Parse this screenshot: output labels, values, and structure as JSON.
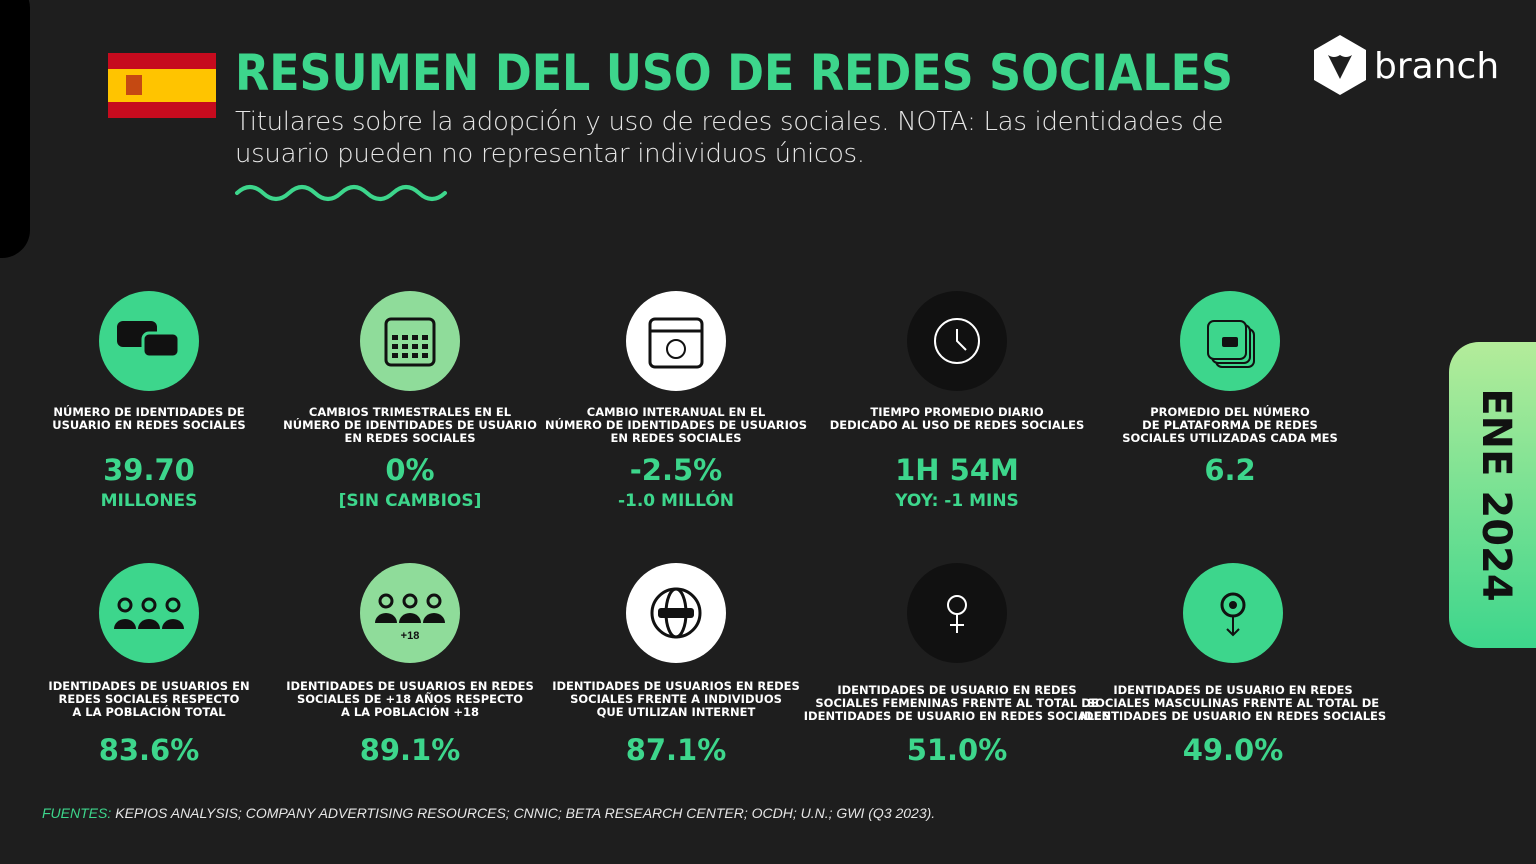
{
  "header": {
    "title": "RESUMEN DEL USO DE REDES SOCIALES",
    "subtitle": "Titulares sobre la adopción y uso de redes sociales. NOTA: Las identidades de usuario pueden no representar individuos únicos."
  },
  "brand": "branch",
  "date_tab": "ENE 2024",
  "stats": [
    {
      "label": [
        "NÚMERO DE IDENTIDADES DE",
        "USUARIO EN REDES SOCIALES"
      ],
      "value": "39.70",
      "sub": "MILLONES"
    },
    {
      "label": [
        "CAMBIOS TRIMESTRALES EN EL",
        "NÚMERO DE IDENTIDADES DE USUARIO",
        "EN REDES SOCIALES"
      ],
      "value": "0%",
      "sub": "[SIN CAMBIOS]"
    },
    {
      "label": [
        "CAMBIO INTERANUAL EN EL",
        "NÚMERO DE IDENTIDADES DE USUARIOS",
        "EN REDES SOCIALES"
      ],
      "value": "-2.5%",
      "sub": "-1.0 MILLÓN"
    },
    {
      "label": [
        "TIEMPO PROMEDIO DIARIO",
        "DEDICADO AL USO DE REDES SOCIALES"
      ],
      "value": "1H 54M",
      "sub": "YOY: -1 MINS"
    },
    {
      "label": [
        "PROMEDIO DEL NÚMERO",
        "DE PLATAFORMA DE REDES",
        "SOCIALES UTILIZADAS CADA MES"
      ],
      "value": "6.2"
    },
    {
      "label": [
        "IDENTIDADES DE USUARIOS EN",
        "REDES SOCIALES RESPECTO",
        "A LA POBLACIÓN TOTAL"
      ],
      "value": "83.6%"
    },
    {
      "label": [
        "IDENTIDADES DE USUARIOS EN REDES",
        "SOCIALES  DE +18 AÑOS RESPECTO",
        "A LA POBLACIÓN  +18"
      ],
      "value": "89.1%",
      "icon_text": "+18"
    },
    {
      "label": [
        "IDENTIDADES DE USUARIOS EN REDES",
        "SOCIALES FRENTE A INDIVIDUOS",
        "QUE UTILIZAN INTERNET"
      ],
      "value": "87.1%"
    },
    {
      "label": [
        "IDENTIDADES DE USUARIO EN REDES",
        "SOCIALES FEMENINAS FRENTE AL TOTAL DE",
        "IDENTIDADES DE USUARIO EN REDES SOCIALES"
      ],
      "value": "51.0%"
    },
    {
      "label": [
        "IDENTIDADES DE USUARIO EN REDES",
        "SOCIALES MASCULINAS FRENTE AL TOTAL DE",
        "IDENTIDADES DE USUARIO EN REDES SOCIALES"
      ],
      "value": "49.0%"
    }
  ],
  "sources": {
    "label": "FUENTES:",
    "text": "KEPIOS ANALYSIS; COMPANY ADVERTISING RESOURCES; CNNIC; BETA RESEARCH CENTER; OCDH; U.N.; GWI (Q3 2023)."
  }
}
